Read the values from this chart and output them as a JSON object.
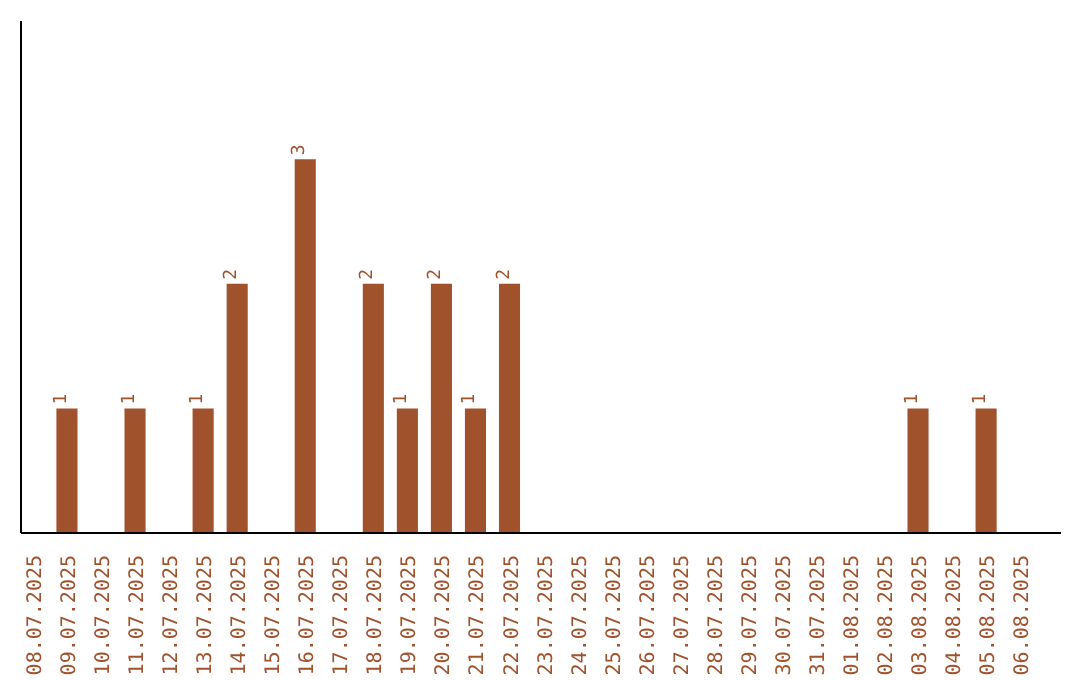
{
  "chart_data": {
    "type": "bar",
    "categories": [
      "08.07.2025",
      "09.07.2025",
      "10.07.2025",
      "11.07.2025",
      "12.07.2025",
      "13.07.2025",
      "14.07.2025",
      "15.07.2025",
      "16.07.2025",
      "17.07.2025",
      "18.07.2025",
      "19.07.2025",
      "20.07.2025",
      "21.07.2025",
      "22.07.2025",
      "23.07.2025",
      "24.07.2025",
      "25.07.2025",
      "26.07.2025",
      "27.07.2025",
      "28.07.2025",
      "29.07.2025",
      "30.07.2025",
      "31.07.2025",
      "01.08.2025",
      "02.08.2025",
      "03.08.2025",
      "04.08.2025",
      "05.08.2025",
      "06.08.2025"
    ],
    "values": [
      0,
      1,
      0,
      1,
      0,
      1,
      2,
      0,
      3,
      0,
      2,
      1,
      2,
      1,
      2,
      0,
      0,
      0,
      0,
      0,
      0,
      0,
      0,
      0,
      0,
      0,
      1,
      0,
      1,
      0
    ],
    "value_labels": [
      null,
      "1",
      null,
      "1",
      null,
      "1",
      "2",
      null,
      "3",
      null,
      "2",
      "1",
      "2",
      "1",
      "2",
      null,
      null,
      null,
      null,
      null,
      null,
      null,
      null,
      null,
      null,
      null,
      "1",
      null,
      "1",
      null
    ],
    "color": "#a0522d",
    "grid": false
  }
}
